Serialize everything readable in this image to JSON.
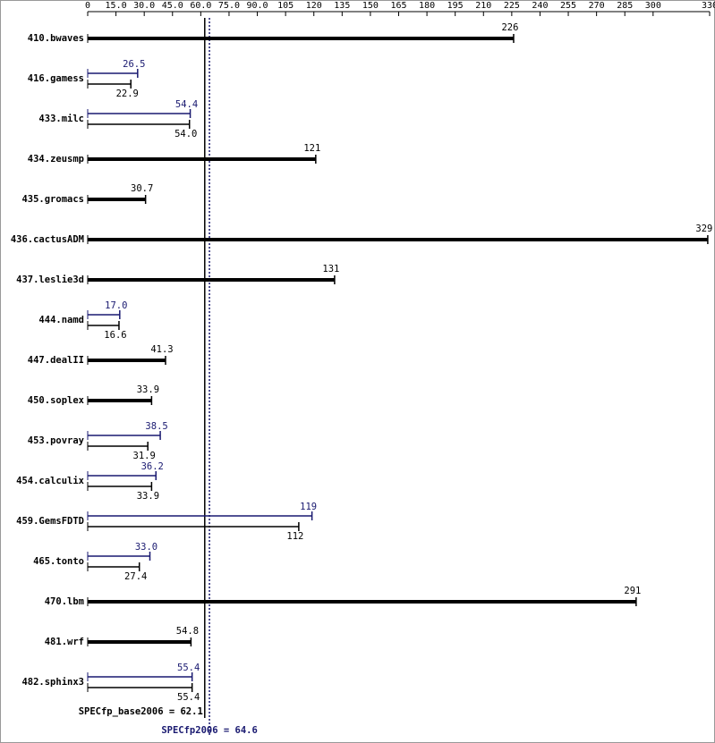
{
  "chart_data": {
    "type": "bar",
    "categories": [
      "410.bwaves",
      "416.gamess",
      "433.milc",
      "434.zeusmp",
      "435.gromacs",
      "436.cactusADM",
      "437.leslie3d",
      "444.namd",
      "447.dealII",
      "450.soplex",
      "453.povray",
      "454.calculix",
      "459.GemsFDTD",
      "465.tonto",
      "470.lbm",
      "481.wrf",
      "482.sphinx3"
    ],
    "series": [
      {
        "color": "#000000",
        "values": [
          226,
          22.9,
          54.0,
          121,
          30.7,
          329,
          131,
          16.6,
          41.3,
          33.9,
          31.9,
          33.9,
          112,
          27.4,
          291,
          54.8,
          55.4
        ],
        "value_labels": [
          "226",
          "22.9",
          "54.0",
          "121",
          "30.7",
          "329",
          "131",
          "16.6",
          "41.3",
          "33.9",
          "31.9",
          "33.9",
          "112",
          "27.4",
          "291",
          "54.8",
          "55.4"
        ]
      },
      {
        "color": "#191970",
        "values": [
          null,
          26.5,
          54.4,
          null,
          null,
          null,
          null,
          17.0,
          null,
          null,
          38.5,
          36.2,
          119,
          33.0,
          null,
          null,
          55.4
        ],
        "value_labels": [
          null,
          "26.5",
          "54.4",
          null,
          null,
          null,
          null,
          "17.0",
          null,
          null,
          "38.5",
          "36.2",
          "119",
          "33.0",
          null,
          null,
          "55.4"
        ]
      }
    ],
    "xlim": [
      0,
      330
    ],
    "xticks": [
      0,
      {
        "value": 15,
        "label": "15.0"
      },
      {
        "value": 30,
        "label": "30.0"
      },
      {
        "value": 45,
        "label": "45.0"
      },
      {
        "value": 60,
        "label": "60.0"
      },
      {
        "value": 75,
        "label": "75.0"
      },
      {
        "value": 90,
        "label": "90.0"
      },
      105,
      120,
      135,
      150,
      165,
      180,
      195,
      210,
      225,
      240,
      255,
      270,
      285,
      300,
      330
    ],
    "reference_lines": [
      {
        "label": "SPECfp_base2006 = 62.1",
        "value": 62.1,
        "color": "#000000",
        "style": "solid"
      },
      {
        "label": "SPECfp2006 = 64.6",
        "value": 64.6,
        "color": "#191970",
        "style": "dotted"
      }
    ]
  }
}
